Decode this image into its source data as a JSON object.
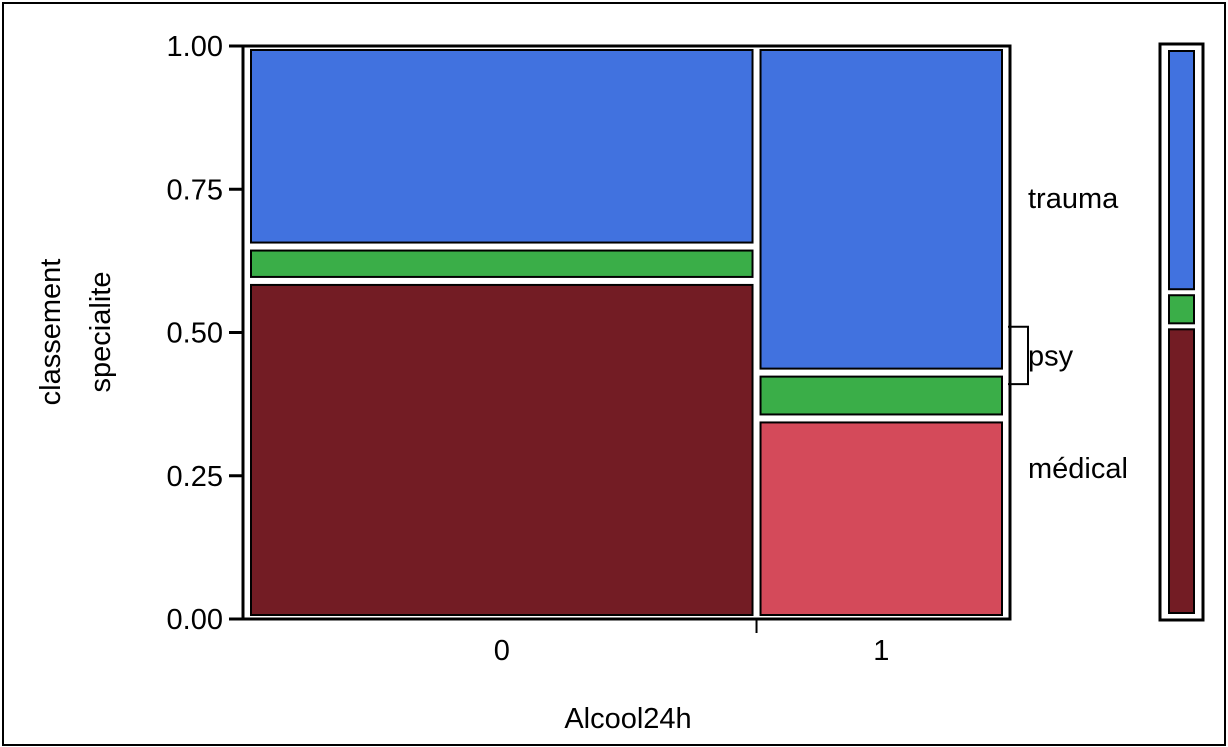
{
  "chart_data": {
    "type": "mosaic",
    "xlabel": "Alcool24h",
    "ylabel": [
      "classement",
      "specialite"
    ],
    "ylim": [
      0,
      1
    ],
    "yticks": [
      "0.00",
      "0.25",
      "0.50",
      "0.75",
      "1.00"
    ],
    "categories": [
      "0",
      "1"
    ],
    "column_widths": [
      0.675,
      0.325
    ],
    "segment_labels": [
      "trauma",
      "psy",
      "médical"
    ],
    "series": [
      {
        "name": "médical",
        "values": [
          0.59,
          0.35
        ]
      },
      {
        "name": "psy",
        "values": [
          0.06,
          0.08
        ]
      },
      {
        "name": "trauma",
        "values": [
          0.35,
          0.57
        ]
      }
    ],
    "legend_bar": [
      {
        "name": "médical",
        "value": 0.51
      },
      {
        "name": "psy",
        "value": 0.06
      },
      {
        "name": "trauma",
        "value": 0.43
      }
    ],
    "colors": {
      "trauma": "#4172DF",
      "psy": "#3AAE48",
      "médical_0": "#731C24",
      "médical_1": "#D44A5A"
    }
  }
}
